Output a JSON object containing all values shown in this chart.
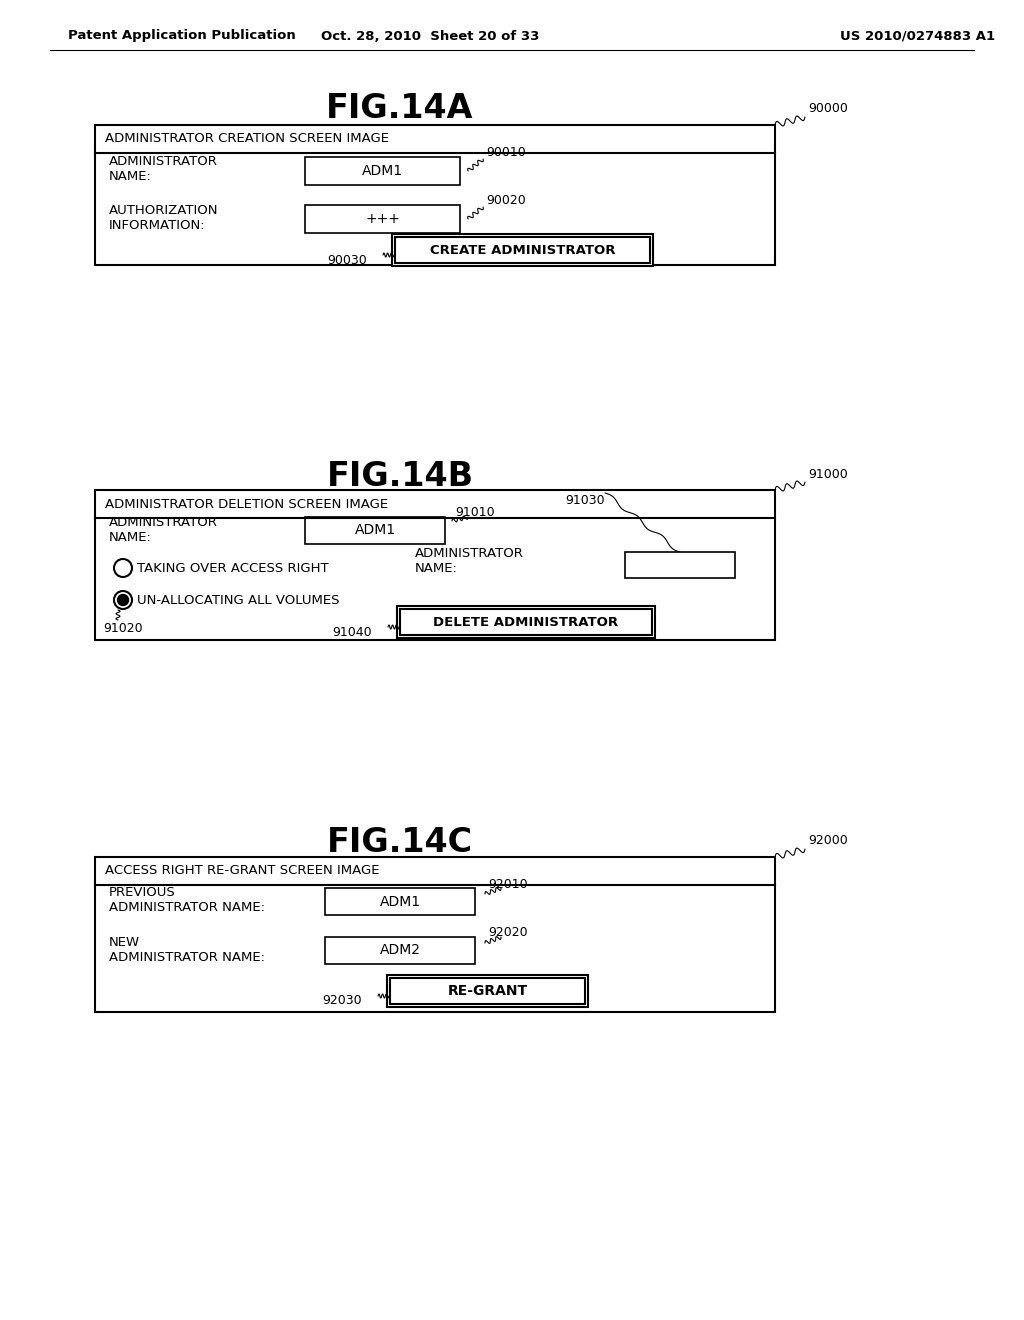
{
  "bg_color": "#ffffff",
  "header_left": "Patent Application Publication",
  "header_mid": "Oct. 28, 2010  Sheet 20 of 33",
  "header_right": "US 2010/0274883 A1",
  "fig14a_title": "FIG.14A",
  "fig14b_title": "FIG.14B",
  "fig14c_title": "FIG.14C",
  "fig14a_label": "90000",
  "fig14b_label": "91000",
  "fig14c_label": "92000",
  "fig14a_header": "ADMINISTRATOR CREATION SCREEN IMAGE",
  "fig14b_header": "ADMINISTRATOR DELETION SCREEN IMAGE",
  "fig14c_header": "ACCESS RIGHT RE-GRANT SCREEN IMAGE",
  "fig14a_row1_label": "ADMINISTRATOR\nNAME:",
  "fig14a_row1_value": "ADM1",
  "fig14a_row1_ref": "90010",
  "fig14a_row2_label": "AUTHORIZATION\nINFORMATION:",
  "fig14a_row2_value": "+++",
  "fig14a_row2_ref": "90020",
  "fig14a_btn_ref": "90030",
  "fig14a_btn_text": "CREATE ADMINISTRATOR",
  "fig14b_row1_label": "ADMINISTRATOR\nNAME:",
  "fig14b_row1_value": "ADM1",
  "fig14b_row1_ref": "91010",
  "fig14b_radio1_text": "TAKING OVER ACCESS RIGHT",
  "fig14b_radio2_text": "UN-ALLOCATING ALL VOLUMES",
  "fig14b_radio2_ref": "91020",
  "fig14b_admin_label": "ADMINISTRATOR\nNAME:",
  "fig14b_admin_ref": "91030",
  "fig14b_btn_ref": "91040",
  "fig14b_btn_text": "DELETE ADMINISTRATOR",
  "fig14c_row1_label": "PREVIOUS\nADMINISTRATOR NAME:",
  "fig14c_row1_value": "ADM1",
  "fig14c_row1_ref": "92010",
  "fig14c_row2_label": "NEW\nADMINISTRATOR NAME:",
  "fig14c_row2_value": "ADM2",
  "fig14c_row2_ref": "92020",
  "fig14c_btn_ref": "92030",
  "fig14c_btn_text": "RE-GRANT"
}
